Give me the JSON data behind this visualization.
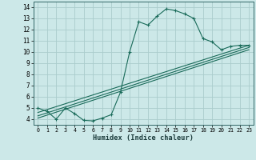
{
  "xlabel": "Humidex (Indice chaleur)",
  "bg_color": "#cce8e8",
  "grid_color": "#aacccc",
  "line_color": "#1a6b5a",
  "xlim": [
    -0.5,
    23.5
  ],
  "ylim": [
    3.5,
    14.5
  ],
  "xticks": [
    0,
    1,
    2,
    3,
    4,
    5,
    6,
    7,
    8,
    9,
    10,
    11,
    12,
    13,
    14,
    15,
    16,
    17,
    18,
    19,
    20,
    21,
    22,
    23
  ],
  "yticks": [
    4,
    5,
    6,
    7,
    8,
    9,
    10,
    11,
    12,
    13,
    14
  ],
  "line1_x": [
    0,
    1,
    2,
    3,
    4,
    5,
    6,
    7,
    8,
    9,
    10,
    11,
    12,
    13,
    14,
    15,
    16,
    17,
    18,
    19,
    20,
    21,
    22,
    23
  ],
  "line1_y": [
    5.0,
    4.7,
    4.0,
    5.0,
    4.5,
    3.9,
    3.85,
    4.1,
    4.4,
    6.4,
    10.0,
    12.7,
    12.4,
    13.2,
    13.85,
    13.7,
    13.4,
    13.0,
    11.2,
    10.9,
    10.2,
    10.5,
    10.6,
    10.6
  ],
  "line2_x": [
    0,
    23
  ],
  "line2_y": [
    4.6,
    10.6
  ],
  "line3_x": [
    0,
    23
  ],
  "line3_y": [
    4.3,
    10.4
  ],
  "line4_x": [
    0,
    23
  ],
  "line4_y": [
    4.1,
    10.2
  ]
}
